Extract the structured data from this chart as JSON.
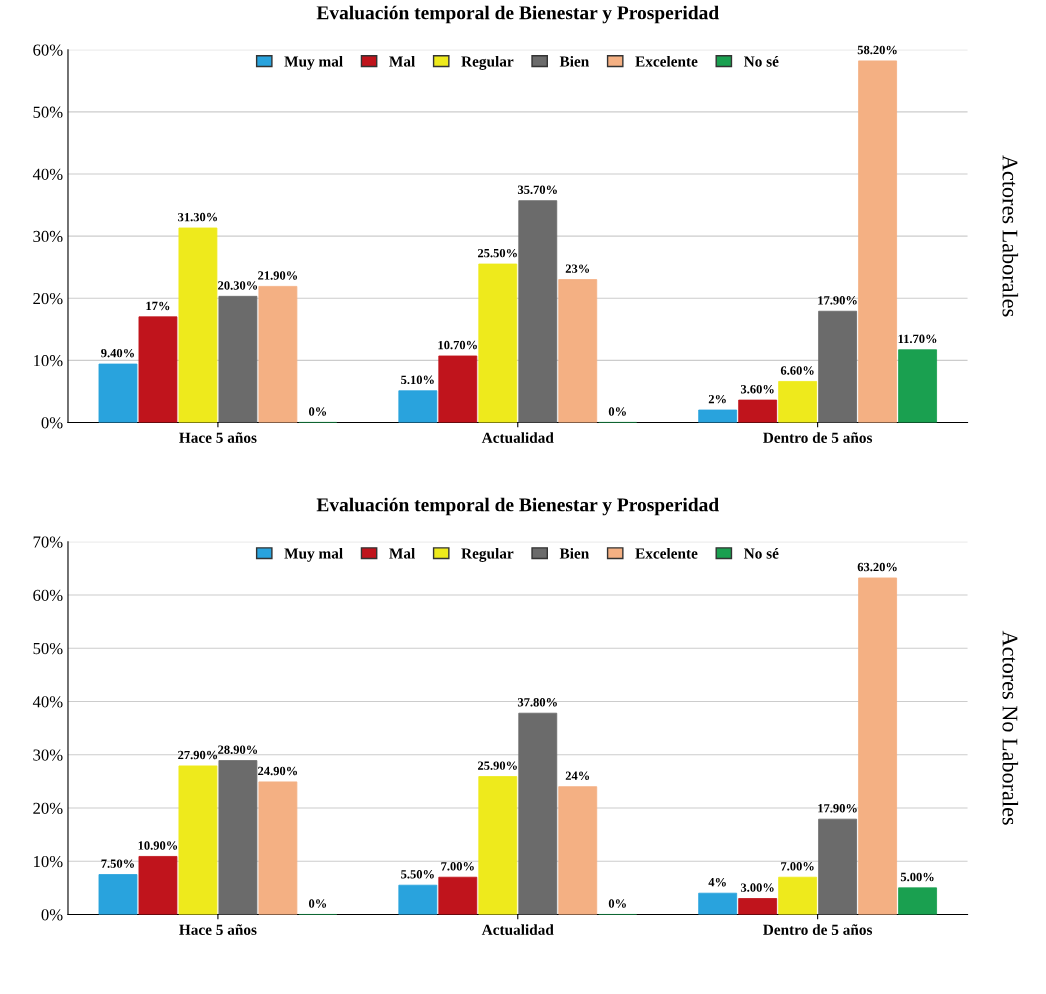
{
  "chart_data": [
    {
      "type": "bar",
      "title": "Evaluación temporal de Bienestar y Prosperidad",
      "y2label": "Actores Laborales",
      "categories": [
        "Hace 5 años",
        "Actualidad",
        "Dentro de 5 años"
      ],
      "series": [
        {
          "name": "Muy mal",
          "color": "#29a3dd",
          "values": [
            9.4,
            5.1,
            2
          ],
          "value_labels": [
            "9.40%",
            "5.10%",
            "2%"
          ]
        },
        {
          "name": "Mal",
          "color": "#c0141c",
          "values": [
            17,
            10.7,
            3.6
          ],
          "value_labels": [
            "17%",
            "10.70%",
            "3.60%"
          ]
        },
        {
          "name": "Regular",
          "color": "#eeea1c",
          "values": [
            31.3,
            25.5,
            6.6
          ],
          "value_labels": [
            "31.30%",
            "25.50%",
            "6.60%"
          ]
        },
        {
          "name": "Bien",
          "color": "#6b6b6b",
          "values": [
            20.3,
            35.7,
            17.9
          ],
          "value_labels": [
            "20.30%",
            "35.70%",
            "17.90%"
          ]
        },
        {
          "name": "Excelente",
          "color": "#f4b083",
          "values": [
            21.9,
            23,
            58.2
          ],
          "value_labels": [
            "21.90%",
            "23%",
            "58.20%"
          ]
        },
        {
          "name": "No sé",
          "color": "#1aa050",
          "values": [
            0,
            0,
            11.7
          ],
          "value_labels": [
            "0%",
            "0%",
            "11.70%"
          ]
        }
      ],
      "ylim": [
        0,
        60
      ],
      "yticks": [
        {
          "value": 0,
          "label": "0%"
        },
        {
          "value": 10,
          "label": "10%"
        },
        {
          "value": 20,
          "label": "20%"
        },
        {
          "value": 30,
          "label": "30%"
        },
        {
          "value": 40,
          "label": "40%"
        },
        {
          "value": 50,
          "label": "50%"
        },
        {
          "value": 60,
          "label": "60%"
        }
      ],
      "grid": "y",
      "legend": "top"
    },
    {
      "type": "bar",
      "title": "Evaluación temporal de Bienestar y Prosperidad",
      "y2label": "Actores No Laborales",
      "categories": [
        "Hace 5 años",
        "Actualidad",
        "Dentro de 5 años"
      ],
      "series": [
        {
          "name": "Muy mal",
          "color": "#29a3dd",
          "values": [
            7.5,
            5.5,
            4
          ],
          "value_labels": [
            "7.50%",
            "5.50%",
            "4%"
          ]
        },
        {
          "name": "Mal",
          "color": "#c0141c",
          "values": [
            10.9,
            7,
            3
          ],
          "value_labels": [
            "10.90%",
            "7.00%",
            "3.00%"
          ]
        },
        {
          "name": "Regular",
          "color": "#eeea1c",
          "values": [
            27.9,
            25.9,
            7
          ],
          "value_labels": [
            "27.90%",
            "25.90%",
            "7.00%"
          ]
        },
        {
          "name": "Bien",
          "color": "#6b6b6b",
          "values": [
            28.9,
            37.8,
            17.9
          ],
          "value_labels": [
            "28.90%",
            "37.80%",
            "17.90%"
          ]
        },
        {
          "name": "Excelente",
          "color": "#f4b083",
          "values": [
            24.9,
            24,
            63.2
          ],
          "value_labels": [
            "24.90%",
            "24%",
            "63.20%"
          ]
        },
        {
          "name": "No sé",
          "color": "#1aa050",
          "values": [
            0,
            0,
            5
          ],
          "value_labels": [
            "0%",
            "0%",
            "5.00%"
          ]
        }
      ],
      "ylim": [
        0,
        70
      ],
      "yticks": [
        {
          "value": 0,
          "label": "0%"
        },
        {
          "value": 10,
          "label": "10%"
        },
        {
          "value": 20,
          "label": "20%"
        },
        {
          "value": 30,
          "label": "30%"
        },
        {
          "value": 40,
          "label": "40%"
        },
        {
          "value": 50,
          "label": "50%"
        },
        {
          "value": 60,
          "label": "60%"
        },
        {
          "value": 70,
          "label": "70%"
        }
      ],
      "grid": "y",
      "legend": "top"
    }
  ]
}
